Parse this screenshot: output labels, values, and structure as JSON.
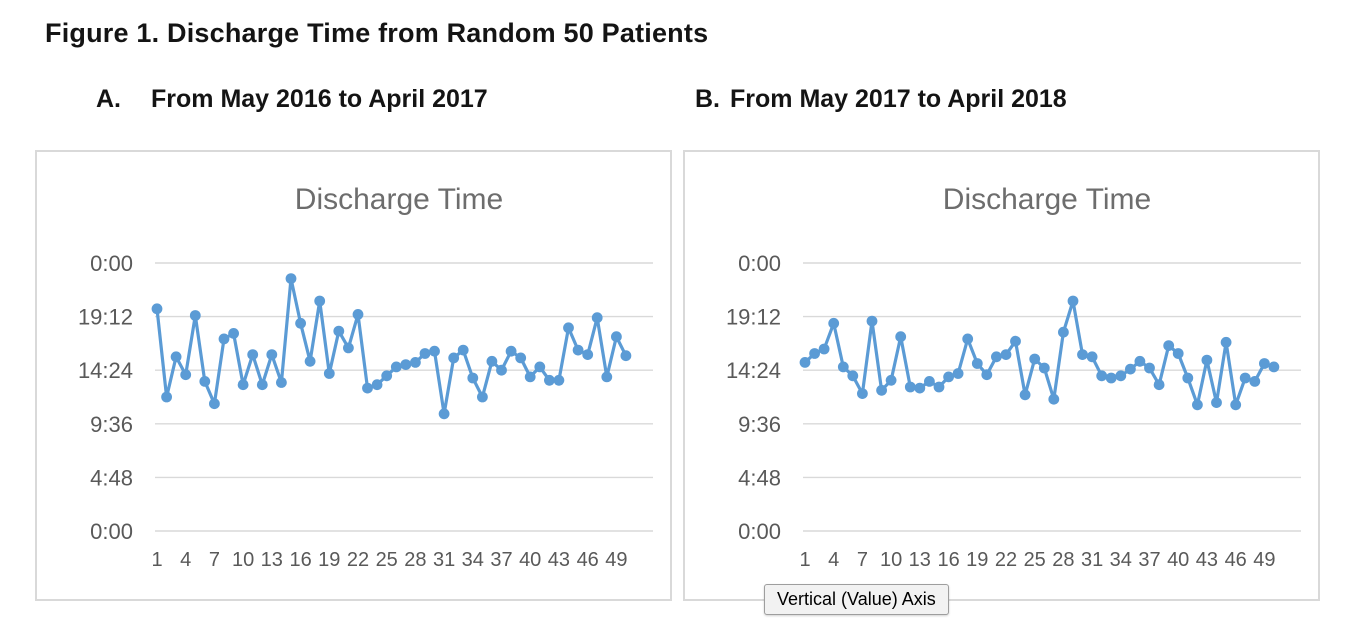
{
  "figure_title": "Figure 1. Discharge Time from Random 50 Patients",
  "panels": [
    {
      "label": "A.",
      "subtitle": "From May 2016 to April 2017"
    },
    {
      "label": "B.",
      "subtitle": "From May 2017 to April 2018"
    }
  ],
  "tooltip": {
    "text": "Vertical (Value) Axis"
  },
  "colors": {
    "series": "#5B9BD5",
    "gridline": "#D9D9D9",
    "panel_border": "#D9D9D9",
    "axis_text": "#595959",
    "chart_title": "#6d6d6d",
    "tooltip_bg": "#f2f2f2",
    "tooltip_border": "#9e9e9e"
  },
  "chart_data": [
    {
      "type": "line",
      "title": "Discharge Time",
      "xlabel": "",
      "ylabel": "",
      "value_format": "time of day h:mm (values stored as decimal hours)",
      "ylim_hours": [
        0,
        24
      ],
      "y_major_unit_hours": 4.8,
      "grid": true,
      "legend": "none",
      "x_range": [
        1,
        50
      ],
      "x_tick_labels": [
        "1",
        "4",
        "7",
        "10",
        "13",
        "16",
        "19",
        "22",
        "25",
        "28",
        "31",
        "34",
        "37",
        "40",
        "43",
        "46",
        "49"
      ],
      "y_tick_labels": [
        "0:00",
        "19:12",
        "14:24",
        "9:36",
        "4:48",
        "0:00"
      ],
      "series": [
        {
          "name": "Discharge Time (May 2016 - April 2017)",
          "values": [
            19.9,
            12.0,
            15.6,
            14.0,
            19.3,
            13.4,
            11.4,
            17.2,
            17.7,
            13.1,
            15.8,
            13.1,
            15.8,
            13.3,
            22.6,
            18.6,
            15.2,
            20.6,
            14.1,
            17.9,
            16.4,
            19.4,
            12.8,
            13.1,
            13.9,
            14.7,
            14.9,
            15.1,
            15.9,
            16.1,
            10.5,
            15.5,
            16.2,
            13.7,
            12.0,
            15.2,
            14.4,
            16.1,
            15.5,
            13.8,
            14.7,
            13.5,
            13.5,
            18.2,
            16.2,
            15.8,
            19.1,
            13.8,
            17.4,
            15.7
          ]
        }
      ]
    },
    {
      "type": "line",
      "title": "Discharge Time",
      "xlabel": "",
      "ylabel": "",
      "value_format": "time of day h:mm (values stored as decimal hours)",
      "ylim_hours": [
        0,
        24
      ],
      "y_major_unit_hours": 4.8,
      "grid": true,
      "legend": "none",
      "x_range": [
        1,
        50
      ],
      "x_tick_labels": [
        "1",
        "4",
        "7",
        "10",
        "13",
        "16",
        "19",
        "22",
        "25",
        "28",
        "31",
        "34",
        "37",
        "40",
        "43",
        "46",
        "49"
      ],
      "y_tick_labels": [
        "0:00",
        "19:12",
        "14:24",
        "9:36",
        "4:48",
        "0:00"
      ],
      "series": [
        {
          "name": "Discharge Time (May 2017 - April 2018)",
          "values": [
            15.1,
            15.9,
            16.3,
            18.6,
            14.7,
            13.9,
            12.3,
            18.8,
            12.6,
            13.5,
            17.4,
            12.9,
            12.8,
            13.4,
            12.9,
            13.8,
            14.1,
            17.2,
            15.0,
            14.0,
            15.6,
            15.8,
            17.0,
            12.2,
            15.4,
            14.6,
            11.8,
            17.8,
            20.6,
            15.8,
            15.6,
            13.9,
            13.7,
            13.9,
            14.5,
            15.2,
            14.6,
            13.1,
            16.6,
            15.9,
            13.7,
            11.3,
            15.3,
            11.5,
            16.9,
            11.3,
            13.7,
            13.4,
            15.0,
            14.7
          ]
        }
      ]
    }
  ]
}
